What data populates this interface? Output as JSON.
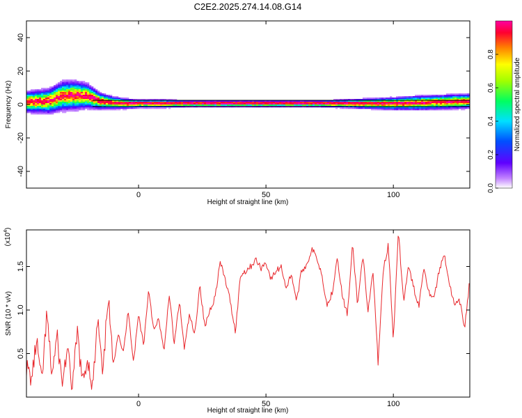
{
  "title": "C2E2.2025.274.14.08.G14",
  "colors": {
    "snr_line": "#e8252a",
    "axis": "#000000",
    "band": "#000000"
  },
  "chart_data": [
    {
      "type": "heatmap",
      "xlabel": "Height of straight line (km)",
      "ylabel": "Frequency (Hz)",
      "xlim": [
        -44,
        130
      ],
      "ylim": [
        -50,
        50
      ],
      "x_ticks": [
        0,
        50,
        100
      ],
      "y_ticks": [
        40,
        20,
        0,
        -20,
        -40
      ],
      "colorbar": {
        "label": "Normalized spectral amplitude",
        "range": [
          0,
          1
        ],
        "ticks": [
          "0.0",
          "0.2",
          "0.4",
          "0.6",
          "0.8"
        ],
        "ticks_values": [
          0.0,
          0.2,
          0.4,
          0.6,
          0.8
        ],
        "colormap": "rainbow"
      },
      "ridge_x": [
        -44,
        -35,
        -30,
        -25,
        -20,
        -15,
        -10,
        -5,
        0,
        10,
        20,
        30,
        40,
        50,
        60,
        70,
        80,
        90,
        100,
        110,
        120,
        130
      ],
      "ridge_freq_hz": [
        1.5,
        2,
        5,
        5.5,
        5,
        2,
        1,
        0.5,
        0.5,
        0.5,
        0.5,
        0.5,
        0.5,
        0.5,
        0.5,
        0.5,
        0.5,
        0.5,
        0.5,
        1,
        1.5,
        2
      ],
      "spread_hz": [
        5,
        6,
        7,
        7,
        6,
        4,
        3,
        2.5,
        2,
        2,
        1.5,
        1.5,
        1.5,
        1.5,
        1.5,
        1.5,
        2,
        2.5,
        3,
        3.5,
        3.5,
        3.5
      ]
    },
    {
      "type": "line",
      "xlabel": "Height of straight line (km)",
      "ylabel": "SNR (10 * v/v)",
      "scale_label": "(x10",
      "scale_exp": "4",
      "scale_close": ")",
      "xlim": [
        -44,
        130
      ],
      "ylim": [
        0,
        19200
      ],
      "x_ticks": [
        0,
        50,
        100
      ],
      "y_ticks": [
        5000,
        10000,
        15000
      ],
      "y_tick_labels": [
        "0.5",
        "1.0",
        "1.5"
      ],
      "series": [
        {
          "x": [
            -44,
            -42,
            -40,
            -38,
            -36,
            -34,
            -32,
            -30,
            -28,
            -26,
            -24,
            -22,
            -20,
            -18,
            -16,
            -14,
            -12,
            -10,
            -8,
            -6,
            -4,
            -2,
            0,
            2,
            4,
            6,
            8,
            10,
            12,
            14,
            16,
            18,
            20,
            22,
            24,
            26,
            28,
            30,
            32,
            34,
            36,
            38,
            40,
            42,
            44,
            46,
            48,
            50,
            52,
            54,
            56,
            58,
            60,
            62,
            64,
            66,
            68,
            70,
            72,
            74,
            76,
            78,
            80,
            82,
            84,
            86,
            88,
            90,
            92,
            94,
            96,
            98,
            100,
            102,
            104,
            106,
            108,
            110,
            112,
            114,
            116,
            118,
            120,
            122,
            124,
            126,
            128,
            130
          ],
          "y": [
            3500,
            2000,
            6500,
            1500,
            9500,
            2500,
            7000,
            1500,
            5500,
            1000,
            7500,
            1500,
            4500,
            1000,
            9000,
            2000,
            12000,
            3500,
            7500,
            5000,
            10000,
            4000,
            9500,
            6000,
            12500,
            7500,
            9000,
            5000,
            12000,
            6000,
            11000,
            5500,
            9500,
            7000,
            13000,
            8000,
            10000,
            11500,
            15500,
            13500,
            11000,
            7500,
            14000,
            14500,
            15000,
            15800,
            14800,
            15500,
            13500,
            14500,
            15000,
            12500,
            14200,
            11000,
            14500,
            15200,
            17000,
            16000,
            14000,
            10500,
            12000,
            16200,
            11500,
            9500,
            17500,
            10500,
            16500,
            9500,
            14500,
            4000,
            14500,
            17500,
            6500,
            19000,
            11000,
            15000,
            12500,
            10500,
            15000,
            12000,
            11500,
            14500,
            16500,
            13000,
            10500,
            11000,
            8000,
            13500
          ]
        }
      ]
    }
  ]
}
